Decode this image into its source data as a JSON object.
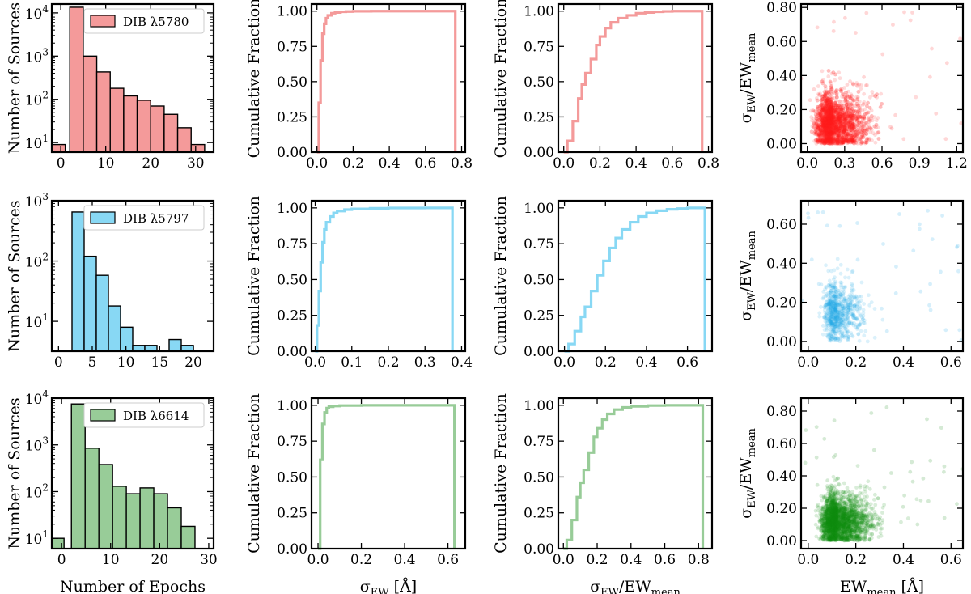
{
  "chart_data": {
    "type": "grid",
    "rows": [
      {
        "dib": "5780",
        "legend": "DIB λ5780",
        "color": "#f49a9a",
        "scatter_color": "#ff2020",
        "hist": {
          "type": "bar",
          "scale": "log",
          "xlim": [
            -2,
            34
          ],
          "ylim": [
            6,
            16000
          ],
          "xticks": [
            "0",
            "10",
            "20",
            "30"
          ],
          "yticks": [
            "10¹",
            "10²",
            "10³",
            "10⁴"
          ],
          "bin_edges": [
            2,
            5,
            8,
            11,
            14,
            17,
            20,
            23,
            26,
            29,
            32
          ],
          "counts": [
            13500,
            1000,
            430,
            180,
            120,
            95,
            70,
            45,
            22,
            9
          ],
          "side_bar": {
            "edges": [
              -2,
              1
            ],
            "count": 9
          }
        },
        "cdf_sigma": {
          "type": "line",
          "xlim": [
            -0.03,
            0.82
          ],
          "ylim": [
            0,
            1.05
          ],
          "xticks": [
            "0.0",
            "0.2",
            "0.4",
            "0.6",
            "0.8"
          ],
          "yticks": [
            "0.00",
            "0.25",
            "0.50",
            "0.75",
            "1.00"
          ],
          "x": [
            0.0,
            0.01,
            0.02,
            0.03,
            0.04,
            0.05,
            0.06,
            0.08,
            0.1,
            0.13,
            0.16,
            0.2,
            0.3,
            0.765
          ],
          "y": [
            0.0,
            0.35,
            0.65,
            0.84,
            0.91,
            0.95,
            0.97,
            0.985,
            0.99,
            0.995,
            0.997,
            0.999,
            1.0,
            1.0
          ],
          "end_x": 0.765
        },
        "cdf_ratio": {
          "type": "line",
          "xlim": [
            -0.03,
            0.82
          ],
          "ylim": [
            0,
            1.05
          ],
          "xticks": [
            "0.0",
            "0.2",
            "0.4",
            "0.6",
            "0.8"
          ],
          "yticks": [
            "0.00",
            "0.25",
            "0.50",
            "0.75",
            "1.00"
          ],
          "x": [
            0.0,
            0.02,
            0.05,
            0.08,
            0.1,
            0.12,
            0.15,
            0.18,
            0.2,
            0.23,
            0.26,
            0.3,
            0.35,
            0.4,
            0.45,
            0.5,
            0.55,
            0.6,
            0.765
          ],
          "y": [
            0.0,
            0.08,
            0.22,
            0.38,
            0.48,
            0.56,
            0.66,
            0.76,
            0.82,
            0.88,
            0.92,
            0.95,
            0.97,
            0.985,
            0.99,
            0.995,
            0.998,
            1.0,
            1.0
          ],
          "end_x": 0.765
        },
        "scatter": {
          "type": "scatter",
          "xlim": [
            -0.05,
            1.25
          ],
          "ylim": [
            -0.05,
            0.82
          ],
          "xticks": [
            "0.0",
            "0.3",
            "0.6",
            "0.9",
            "1.2"
          ],
          "yticks": [
            "0.00",
            "0.20",
            "0.40",
            "0.60",
            "0.80"
          ],
          "center": [
            0.2,
            0.12
          ],
          "spread": [
            0.1,
            0.09
          ],
          "n": 2600
        }
      },
      {
        "dib": "5797",
        "legend": "DIB λ5797",
        "color": "#88d8f4",
        "scatter_color": "#1ea8e8",
        "hist": {
          "type": "bar",
          "scale": "log",
          "xlim": [
            -1,
            23
          ],
          "ylim": [
            3.2,
            1000
          ],
          "xticks": [
            "0",
            "5",
            "10",
            "15",
            "20"
          ],
          "yticks": [
            "10¹",
            "10²",
            "10³"
          ],
          "bin_edges": [
            2,
            3.8,
            5.6,
            7.4,
            9.2,
            11,
            12.8,
            14.6,
            16.4,
            18.2,
            20
          ],
          "counts": [
            650,
            120,
            58,
            18,
            8,
            4,
            4,
            3,
            5,
            4
          ],
          "side_bar": null
        },
        "cdf_sigma": {
          "type": "line",
          "xlim": [
            -0.01,
            0.41
          ],
          "ylim": [
            0,
            1.05
          ],
          "xticks": [
            "0.0",
            "0.1",
            "0.2",
            "0.3",
            "0.4"
          ],
          "yticks": [
            "0.00",
            "0.25",
            "0.50",
            "0.75",
            "1.00"
          ],
          "x": [
            0.0,
            0.005,
            0.01,
            0.015,
            0.02,
            0.025,
            0.03,
            0.04,
            0.05,
            0.06,
            0.08,
            0.1,
            0.15,
            0.2,
            0.3,
            0.375
          ],
          "y": [
            0.0,
            0.18,
            0.42,
            0.62,
            0.76,
            0.85,
            0.9,
            0.94,
            0.965,
            0.978,
            0.988,
            0.993,
            0.997,
            0.999,
            1.0,
            1.0
          ],
          "end_x": 0.375
        },
        "cdf_ratio": {
          "type": "line",
          "xlim": [
            -0.03,
            0.72
          ],
          "ylim": [
            0,
            1.05
          ],
          "xticks": [
            "0.0",
            "0.2",
            "0.4",
            "0.6"
          ],
          "yticks": [
            "0.00",
            "0.25",
            "0.50",
            "0.75",
            "1.00"
          ],
          "x": [
            0.0,
            0.02,
            0.05,
            0.08,
            0.1,
            0.13,
            0.16,
            0.19,
            0.22,
            0.25,
            0.28,
            0.32,
            0.36,
            0.4,
            0.45,
            0.5,
            0.55,
            0.6,
            0.685
          ],
          "y": [
            0.0,
            0.05,
            0.14,
            0.24,
            0.31,
            0.42,
            0.53,
            0.63,
            0.72,
            0.79,
            0.85,
            0.9,
            0.94,
            0.965,
            0.98,
            0.99,
            0.995,
            1.0,
            1.0
          ],
          "end_x": 0.685
        },
        "scatter": {
          "type": "scatter",
          "xlim": [
            -0.03,
            0.65
          ],
          "ylim": [
            -0.05,
            0.72
          ],
          "xticks": [
            "0.0",
            "0.2",
            "0.4",
            "0.6"
          ],
          "yticks": [
            "0.00",
            "0.20",
            "0.40",
            "0.60"
          ],
          "center": [
            0.12,
            0.15
          ],
          "spread": [
            0.04,
            0.08
          ],
          "n": 700
        }
      },
      {
        "dib": "6614",
        "legend": "DIB λ6614",
        "color": "#98cc98",
        "scatter_color": "#148c14",
        "hist": {
          "type": "bar",
          "scale": "log",
          "xlim": [
            -2,
            31
          ],
          "ylim": [
            6,
            10000
          ],
          "xticks": [
            "0",
            "10",
            "20",
            "30"
          ],
          "yticks": [
            "10¹",
            "10²",
            "10³",
            "10⁴"
          ],
          "bin_edges": [
            2,
            4.8,
            7.6,
            10.4,
            13.2,
            16,
            18.8,
            21.6,
            24.4,
            27.2
          ],
          "counts": [
            7500,
            850,
            380,
            130,
            90,
            120,
            90,
            45,
            18
          ],
          "side_bar": {
            "edges": [
              -2,
              0.5
            ],
            "count": 10
          }
        },
        "cdf_sigma": {
          "type": "line",
          "xlim": [
            -0.03,
            0.68
          ],
          "ylim": [
            0,
            1.05
          ],
          "xticks": [
            "0.0",
            "0.2",
            "0.4",
            "0.6"
          ],
          "yticks": [
            "0.00",
            "0.25",
            "0.50",
            "0.75",
            "1.00"
          ],
          "x": [
            0.0,
            0.01,
            0.02,
            0.03,
            0.04,
            0.05,
            0.07,
            0.1,
            0.2,
            0.63
          ],
          "y": [
            0.0,
            0.62,
            0.87,
            0.95,
            0.98,
            0.99,
            0.995,
            0.998,
            1.0,
            1.0
          ],
          "end_x": 0.63
        },
        "cdf_ratio": {
          "type": "line",
          "xlim": [
            -0.03,
            0.88
          ],
          "ylim": [
            0,
            1.05
          ],
          "xticks": [
            "0.0",
            "0.2",
            "0.4",
            "0.6",
            "0.8"
          ],
          "yticks": [
            "0.00",
            "0.25",
            "0.50",
            "0.75",
            "1.00"
          ],
          "x": [
            0.0,
            0.02,
            0.05,
            0.08,
            0.1,
            0.12,
            0.15,
            0.18,
            0.2,
            0.23,
            0.26,
            0.3,
            0.35,
            0.4,
            0.5,
            0.6,
            0.825
          ],
          "y": [
            0.0,
            0.06,
            0.2,
            0.36,
            0.46,
            0.55,
            0.67,
            0.78,
            0.84,
            0.9,
            0.94,
            0.97,
            0.985,
            0.993,
            0.998,
            1.0,
            1.0
          ],
          "end_x": 0.825
        },
        "scatter": {
          "type": "scatter",
          "xlim": [
            -0.03,
            0.65
          ],
          "ylim": [
            -0.05,
            0.88
          ],
          "xticks": [
            "0.0",
            "0.2",
            "0.4",
            "0.6"
          ],
          "yticks": [
            "0.00",
            "0.20",
            "0.40",
            "0.60",
            "0.80"
          ],
          "center": [
            0.12,
            0.12
          ],
          "spread": [
            0.05,
            0.08
          ],
          "n": 2600
        }
      }
    ],
    "labels": {
      "hist_ylabel": "Number of Sources",
      "cdf_ylabel": "Cumulative Fraction",
      "scatter_ylabel": "σEW/EWmean",
      "col1_xlabel": "Number of Epochs",
      "col2_xlabel": "σEW [Å]",
      "col3_xlabel": "σEW/EWmean",
      "col4_xlabel": "EWmean [Å]"
    }
  }
}
